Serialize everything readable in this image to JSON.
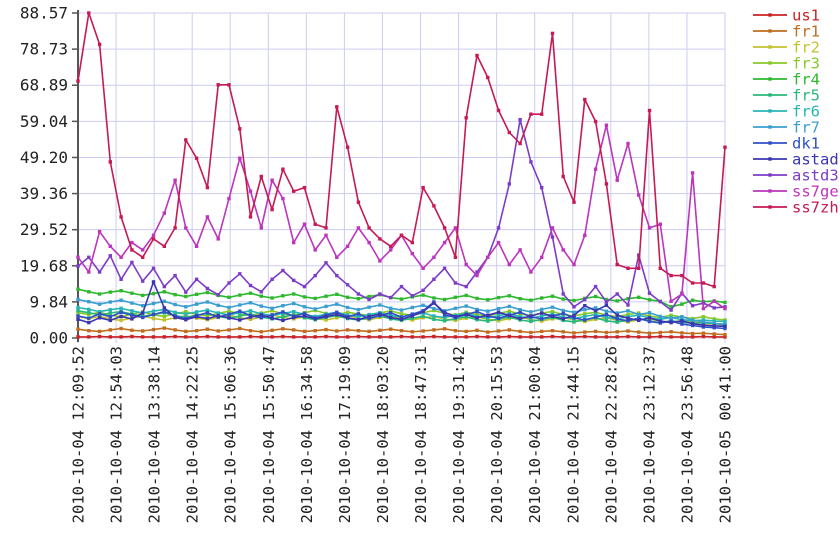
{
  "chart_data": {
    "type": "line",
    "title": "",
    "xlabel": "",
    "ylabel": "",
    "ylim": [
      0,
      88.57
    ],
    "grid": true,
    "legend_position": "right",
    "y_tick_labels": [
      "0.00",
      "9.84",
      "19.68",
      "29.52",
      "39.36",
      "49.20",
      "59.04",
      "68.89",
      "78.73",
      "88.57"
    ],
    "y_tick_values": [
      0,
      9.84,
      19.68,
      29.52,
      39.36,
      49.2,
      59.04,
      68.89,
      78.73,
      88.57
    ],
    "x_tick_labels": [
      "2010-10-04 12:09:52",
      "2010-10-04 12:54:03",
      "2010-10-04 13:38:14",
      "2010-10-04 14:22:25",
      "2010-10-04 15:06:36",
      "2010-10-04 15:50:47",
      "2010-10-04 16:34:58",
      "2010-10-04 17:19:09",
      "2010-10-04 18:03:20",
      "2010-10-04 18:47:31",
      "2010-10-04 19:31:42",
      "2010-10-04 20:15:53",
      "2010-10-04 21:00:04",
      "2010-10-04 21:44:15",
      "2010-10-04 22:28:26",
      "2010-10-04 23:12:37",
      "2010-10-04 23:56:48",
      "2010-10-05 00:41:00"
    ],
    "series": [
      {
        "name": "us1",
        "color": "#cc2222",
        "values": [
          0.3,
          0.3,
          0.4,
          0.3,
          0.3,
          0.4,
          0.3,
          0.3,
          0.3,
          0.4,
          0.3,
          0.3,
          0.4,
          0.3,
          0.3,
          0.3,
          0.4,
          0.3,
          0.3,
          0.4,
          0.3,
          0.3,
          0.3,
          0.4,
          0.3,
          0.3,
          0.4,
          0.3,
          0.3,
          0.3,
          0.4,
          0.3,
          0.3,
          0.4,
          0.3,
          0.3,
          0.3,
          0.4,
          0.3,
          0.3,
          0.4,
          0.3,
          0.3,
          0.3,
          0.4,
          0.3,
          0.3,
          0.4,
          0.3,
          0.3,
          0.3,
          0.4,
          0.3,
          0.3,
          0.4,
          0.3,
          0.3,
          0.3,
          0.4,
          0.3,
          0.3
        ]
      },
      {
        "name": "fr1",
        "color": "#c06d1f",
        "values": [
          2.4,
          2.0,
          1.8,
          2.2,
          2.6,
          2.1,
          1.9,
          2.3,
          2.7,
          2.2,
          1.8,
          2.0,
          2.4,
          1.9,
          2.2,
          2.6,
          2.0,
          1.7,
          2.1,
          2.5,
          2.2,
          1.8,
          2.0,
          2.3,
          1.9,
          2.2,
          2.0,
          1.8,
          2.1,
          2.4,
          2.0,
          1.7,
          1.9,
          2.2,
          2.5,
          2.0,
          1.8,
          2.1,
          1.6,
          1.9,
          2.2,
          1.8,
          1.5,
          1.8,
          2.0,
          1.7,
          1.4,
          1.6,
          1.8,
          1.5,
          1.7,
          1.9,
          1.6,
          1.3,
          1.5,
          1.7,
          1.4,
          1.2,
          1.3,
          1.1,
          0.9
        ]
      },
      {
        "name": "fr2",
        "color": "#c2c22e",
        "values": [
          5.8,
          5.3,
          5.9,
          5.2,
          4.8,
          5.4,
          6.0,
          5.3,
          4.9,
          5.5,
          6.1,
          5.4,
          5.0,
          5.6,
          6.2,
          5.5,
          5.1,
          5.7,
          6.3,
          5.6,
          5.2,
          5.8,
          5.3,
          4.9,
          5.5,
          6.1,
          5.4,
          5.0,
          5.6,
          6.0,
          5.3,
          4.9,
          5.5,
          5.9,
          5.2,
          4.8,
          5.4,
          5.8,
          5.1,
          4.7,
          5.3,
          5.7,
          5.0,
          4.6,
          5.2,
          5.6,
          4.9,
          4.5,
          5.1,
          5.5,
          4.8,
          4.4,
          5.0,
          5.2,
          4.6,
          4.2,
          4.8,
          4.4,
          4.0,
          3.8,
          3.5
        ]
      },
      {
        "name": "fr3",
        "color": "#88c828",
        "values": [
          6.9,
          6.4,
          7.0,
          6.2,
          5.8,
          6.5,
          7.1,
          6.3,
          5.9,
          6.6,
          7.2,
          6.4,
          6.0,
          6.7,
          7.3,
          6.5,
          6.1,
          6.8,
          7.4,
          6.6,
          6.2,
          6.9,
          7.5,
          6.7,
          6.3,
          7.0,
          6.5,
          6.1,
          6.8,
          7.4,
          6.6,
          6.2,
          6.9,
          7.5,
          6.7,
          6.3,
          7.0,
          6.4,
          6.0,
          6.7,
          7.3,
          6.5,
          6.1,
          6.8,
          7.2,
          6.4,
          6.0,
          6.6,
          7.0,
          6.2,
          5.8,
          6.4,
          6.8,
          6.0,
          5.6,
          6.2,
          5.7,
          5.3,
          5.8,
          5.2,
          4.9
        ]
      },
      {
        "name": "fr4",
        "color": "#2eb82e",
        "values": [
          13.3,
          12.6,
          12.0,
          12.5,
          12.9,
          12.2,
          11.6,
          12.1,
          12.6,
          11.8,
          11.3,
          11.9,
          12.4,
          11.6,
          11.1,
          11.7,
          12.2,
          11.4,
          10.9,
          11.5,
          12.0,
          11.2,
          10.8,
          11.4,
          11.9,
          11.1,
          10.7,
          11.3,
          11.8,
          11.0,
          10.6,
          11.2,
          11.7,
          10.9,
          10.5,
          11.1,
          11.6,
          10.8,
          10.4,
          11.0,
          11.5,
          10.7,
          10.3,
          10.9,
          11.4,
          10.6,
          10.2,
          10.8,
          11.3,
          10.5,
          10.1,
          10.7,
          11.1,
          10.4,
          10.0,
          8.5,
          9.2,
          10.3,
          9.9,
          10.1,
          9.7
        ]
      },
      {
        "name": "fr5",
        "color": "#28b878",
        "values": [
          7.4,
          6.9,
          6.3,
          6.8,
          7.2,
          6.5,
          5.9,
          6.4,
          6.9,
          6.1,
          5.6,
          6.2,
          6.7,
          5.9,
          5.4,
          6.0,
          6.5,
          5.7,
          5.2,
          5.8,
          6.3,
          5.5,
          5.0,
          5.6,
          6.1,
          5.3,
          4.9,
          5.5,
          6.0,
          5.2,
          4.8,
          5.4,
          5.9,
          5.1,
          4.7,
          5.3,
          5.8,
          5.0,
          4.6,
          5.2,
          5.7,
          4.9,
          4.5,
          5.1,
          5.6,
          4.8,
          4.4,
          5.0,
          5.5,
          4.7,
          4.3,
          4.9,
          5.3,
          4.6,
          4.2,
          4.7,
          4.3,
          4.0,
          4.2,
          3.9,
          3.8
        ]
      },
      {
        "name": "fr6",
        "color": "#28b5b5",
        "values": [
          8.3,
          7.8,
          7.2,
          7.7,
          8.1,
          7.4,
          6.8,
          7.3,
          7.8,
          7.0,
          6.5,
          7.1,
          7.6,
          6.8,
          6.3,
          6.9,
          7.4,
          6.6,
          6.1,
          6.7,
          7.2,
          6.4,
          5.9,
          6.5,
          7.0,
          6.2,
          5.8,
          6.4,
          6.9,
          6.1,
          5.7,
          6.3,
          6.8,
          6.0,
          5.6,
          6.2,
          6.7,
          5.9,
          5.5,
          6.1,
          6.6,
          5.8,
          5.4,
          6.0,
          6.5,
          5.7,
          5.3,
          5.9,
          6.4,
          5.6,
          5.2,
          5.8,
          6.2,
          5.5,
          5.1,
          5.6,
          5.0,
          4.7,
          4.9,
          4.6,
          4.5
        ]
      },
      {
        "name": "fr7",
        "color": "#3a9fd0",
        "values": [
          10.5,
          9.9,
          9.2,
          9.8,
          10.3,
          9.5,
          8.8,
          9.4,
          10.0,
          9.1,
          8.5,
          9.2,
          9.8,
          8.9,
          8.3,
          9.0,
          9.6,
          8.7,
          8.1,
          8.8,
          9.4,
          8.5,
          7.9,
          8.6,
          9.2,
          8.3,
          7.7,
          8.4,
          9.0,
          8.1,
          7.6,
          8.3,
          8.9,
          8.0,
          7.4,
          8.1,
          8.7,
          7.8,
          7.3,
          8.0,
          8.6,
          7.7,
          7.1,
          7.8,
          8.4,
          7.5,
          7.0,
          7.7,
          8.2,
          7.3,
          6.8,
          7.4,
          6.4,
          6.9,
          5.9,
          5.4,
          5.8,
          4.9,
          4.4,
          4.0,
          3.6
        ]
      },
      {
        "name": "dk1",
        "color": "#3050c8",
        "values": [
          6.0,
          5.4,
          6.6,
          5.8,
          7.0,
          6.2,
          5.6,
          6.4,
          7.2,
          6.0,
          5.3,
          6.1,
          6.9,
          5.7,
          6.5,
          7.3,
          6.1,
          5.5,
          6.3,
          7.1,
          5.9,
          6.7,
          5.4,
          6.2,
          7.0,
          5.8,
          6.6,
          5.3,
          6.1,
          6.9,
          5.7,
          6.5,
          7.4,
          9.8,
          6.3,
          5.6,
          6.4,
          7.2,
          6.0,
          5.4,
          6.2,
          7.0,
          5.8,
          5.2,
          6.0,
          6.7,
          5.5,
          4.9,
          5.7,
          6.4,
          5.2,
          4.7,
          5.4,
          4.5,
          4.1,
          4.6,
          3.8,
          3.4,
          3.0,
          2.8,
          2.6
        ]
      },
      {
        "name": "astad",
        "color": "#3b36b0",
        "values": [
          5.1,
          4.2,
          5.5,
          4.8,
          5.9,
          5.2,
          6.8,
          15.3,
          8.2,
          5.6,
          5.0,
          5.8,
          5.3,
          6.1,
          5.5,
          4.9,
          5.7,
          6.3,
          5.4,
          4.8,
          5.6,
          6.0,
          5.2,
          5.8,
          6.4,
          5.5,
          5.0,
          5.9,
          6.5,
          5.6,
          5.1,
          6.0,
          7.2,
          9.5,
          7.0,
          5.8,
          6.4,
          5.5,
          6.2,
          7.0,
          6.1,
          5.3,
          6.0,
          6.8,
          5.9,
          5.2,
          6.1,
          8.8,
          7.4,
          8.9,
          6.2,
          5.4,
          4.8,
          5.5,
          4.6,
          4.2,
          4.7,
          3.9,
          3.5,
          3.3,
          3.2
        ]
      },
      {
        "name": "astd3",
        "color": "#7d3cc8",
        "values": [
          19.6,
          22,
          18,
          22.4,
          16,
          20.6,
          15.5,
          19,
          14,
          17,
          12.5,
          16,
          13.5,
          11.8,
          15,
          17.5,
          14.3,
          12.6,
          16,
          18.4,
          15.7,
          14,
          17,
          20.5,
          17,
          14.5,
          12,
          10.5,
          12,
          11,
          14,
          11.5,
          13,
          16,
          19,
          15,
          14,
          18,
          22,
          30,
          42,
          59.5,
          48,
          41,
          27.5,
          12,
          8.5,
          10.5,
          14,
          9.8,
          12,
          9,
          22.6,
          12.2,
          9.9,
          7.6,
          12.2,
          8.8,
          9.5,
          8.2,
          8.5
        ]
      },
      {
        "name": "ss7ge",
        "color": "#bc35bc",
        "values": [
          22,
          18,
          29,
          25,
          22,
          26,
          24,
          28,
          34,
          43,
          30,
          25,
          33,
          27,
          38,
          49,
          40,
          30,
          43,
          38,
          26,
          31,
          24,
          28,
          22,
          25,
          30,
          26,
          21,
          24,
          28,
          23,
          19,
          22,
          26,
          30,
          20,
          17,
          22,
          26,
          20,
          24,
          18,
          22,
          30,
          24,
          20,
          28,
          46,
          58,
          43,
          53,
          39,
          30,
          31,
          10,
          12,
          45,
          8,
          10,
          8
        ]
      },
      {
        "name": "ss7zh",
        "color": "#c51a54",
        "values": [
          70,
          88.57,
          80,
          48,
          33,
          24,
          22,
          27,
          25,
          30,
          54,
          49,
          41,
          69,
          69,
          57,
          33,
          44,
          35,
          46,
          40,
          41,
          31,
          30,
          63,
          52,
          37,
          30,
          27,
          25,
          28,
          26,
          41,
          36,
          30,
          22,
          60,
          77,
          71,
          62,
          56,
          53,
          61,
          61,
          83,
          44,
          37,
          65,
          59,
          42,
          20,
          19,
          19,
          62,
          19,
          17,
          17,
          15,
          15,
          14,
          52
        ]
      }
    ]
  },
  "style": {
    "grid_color": "#ccccf2",
    "axis_color": "#555555",
    "tick_text_color": "#222222",
    "background": "#ffffff"
  }
}
